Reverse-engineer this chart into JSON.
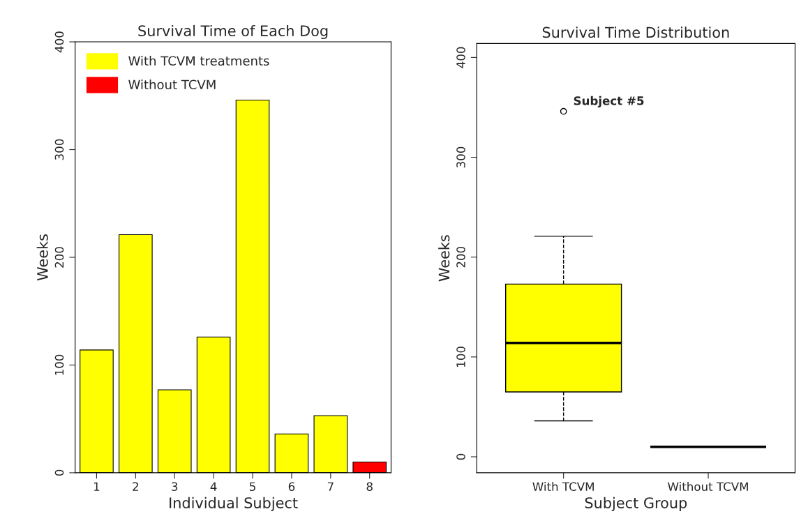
{
  "chart_data": [
    {
      "type": "bar",
      "title": "Survival Time of Each Dog",
      "xlabel": "Individual Subject",
      "ylabel": "Weeks",
      "categories": [
        "1",
        "2",
        "3",
        "4",
        "5",
        "6",
        "7",
        "8"
      ],
      "series": [
        {
          "name": "With TCVM treatments",
          "color": "#ffff00",
          "values": [
            114,
            221,
            77,
            126,
            346,
            36,
            53,
            null
          ]
        },
        {
          "name": "Without TCVM",
          "color": "#ff0000",
          "values": [
            null,
            null,
            null,
            null,
            null,
            null,
            null,
            10
          ]
        }
      ],
      "ylim": [
        0,
        400
      ],
      "yticks": [
        0,
        100,
        200,
        300,
        400
      ],
      "grid": false,
      "legend": "top left"
    },
    {
      "type": "box",
      "title": "Survival Time Distribution",
      "xlabel": "Subject Group",
      "ylabel": "Weeks",
      "categories": [
        "With TCVM",
        "Without TCVM"
      ],
      "colors": [
        "#ffff00",
        "#000000"
      ],
      "boxes": [
        {
          "low": 36,
          "q1": 65,
          "median": 114,
          "q3": 173,
          "high": 221,
          "outliers": [
            346
          ]
        },
        {
          "low": 10,
          "q1": 10,
          "median": 10,
          "q3": 10,
          "high": 10
        }
      ],
      "annotations": [
        "Subject #5"
      ],
      "ylim": [
        -16,
        414
      ],
      "yticks": [
        0,
        100,
        200,
        300,
        400
      ],
      "grid": false
    }
  ]
}
